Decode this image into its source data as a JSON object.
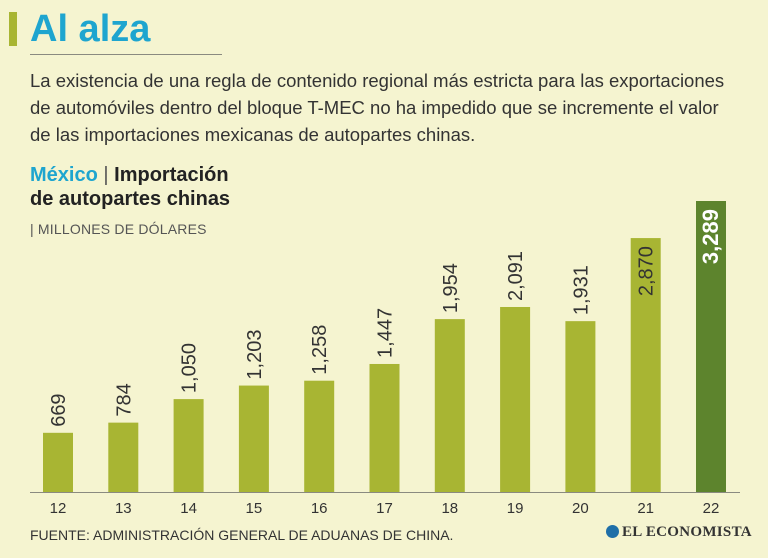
{
  "header": {
    "title": "Al alza",
    "intro": "La existencia de una regla de contenido regional más estricta para las exportaciones de automóviles dentro del bloque T-MEC no ha impedido que se incremente el valor de las importaciones mexicanas de autopartes chinas."
  },
  "chart_data": {
    "type": "bar",
    "title_country": "México",
    "title_separator": "|",
    "title_line1": "Importación",
    "title_line2": "de autopartes chinas",
    "units": "| MILLONES DE DÓLARES",
    "categories": [
      "12",
      "13",
      "14",
      "15",
      "16",
      "17",
      "18",
      "19",
      "20",
      "21",
      "22"
    ],
    "values": [
      669,
      784,
      1050,
      1203,
      1258,
      1447,
      1954,
      2091,
      1931,
      2870,
      3289
    ],
    "labels": [
      "669",
      "784",
      "1,050",
      "1,203",
      "1,258",
      "1,447",
      "1,954",
      "2,091",
      "1,931",
      "2,870",
      "3,289"
    ],
    "highlight_index": 10,
    "ylim": [
      0,
      3289
    ],
    "colors": {
      "bar": "#a8b533",
      "highlight": "#5d842d",
      "axis": "#8a8a80",
      "label": "#333333",
      "highlight_label": "#ffffff",
      "accent": "#1ea5cf"
    }
  },
  "footer": {
    "source": "FUENTE: ADMINISTRACIÓN GENERAL DE ADUANAS DE CHINA.",
    "brand": "EL ECONOMISTA",
    "brand_icon": "globe-icon"
  }
}
